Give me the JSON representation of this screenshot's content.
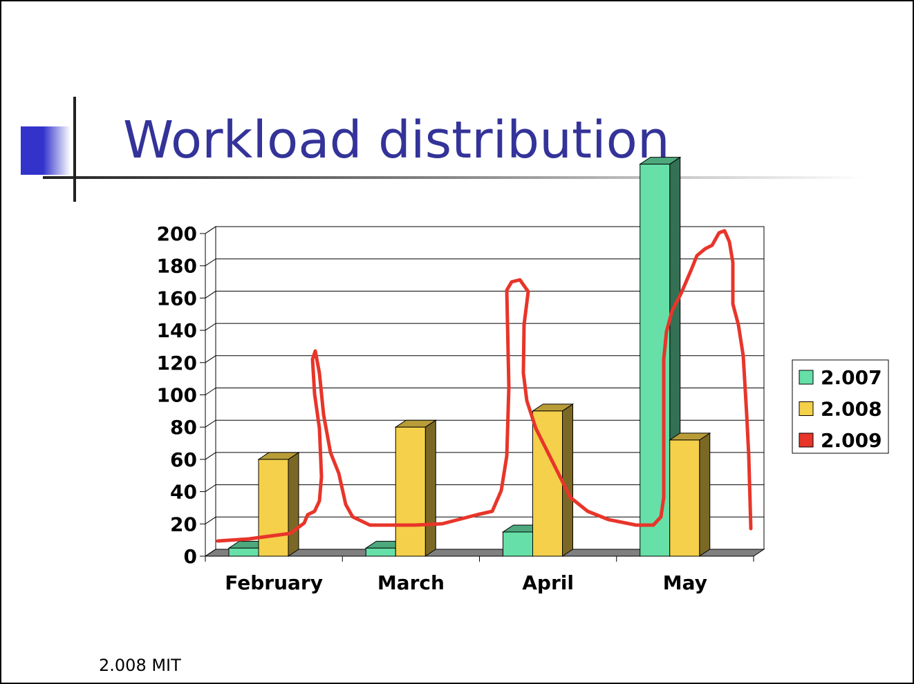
{
  "title": "Workload distribution",
  "footer": "2.008 MIT",
  "chart_data": {
    "type": "bar3d",
    "categories": [
      "February",
      "March",
      "April",
      "May"
    ],
    "series": [
      {
        "name": "2.007",
        "color": "#66e0a8",
        "values": [
          5,
          5,
          15,
          243
        ]
      },
      {
        "name": "2.008",
        "color": "#f5d04a",
        "values": [
          60,
          80,
          90,
          72
        ]
      },
      {
        "name": "2.009",
        "color": "#e8352a",
        "values": [
          null,
          null,
          null,
          null
        ]
      }
    ],
    "ylim": [
      0,
      200
    ],
    "yticks": [
      0,
      20,
      40,
      60,
      80,
      100,
      120,
      140,
      160,
      180,
      200
    ],
    "grid": true,
    "legend": "right"
  }
}
